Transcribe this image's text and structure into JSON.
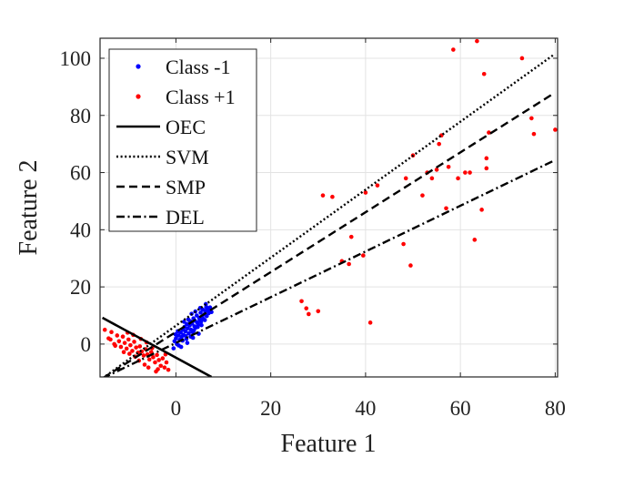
{
  "chart_data": {
    "type": "scatter",
    "xlabel": "Feature 1",
    "ylabel": "Feature 2",
    "xlim": [
      -16,
      80.5
    ],
    "ylim": [
      -11.5,
      107
    ],
    "xticks": [
      0,
      20,
      40,
      60,
      80
    ],
    "yticks": [
      0,
      20,
      40,
      60,
      80,
      100
    ],
    "xtick_labels": [
      "0",
      "20",
      "40",
      "60",
      "80"
    ],
    "ytick_labels": [
      "0",
      "20",
      "40",
      "60",
      "80",
      "100"
    ],
    "grid": true,
    "legend_position": "top-left",
    "series": [
      {
        "name": "Class -1",
        "kind": "points",
        "color": "#0000ff",
        "points": [
          [
            -0.5,
            -1.5
          ],
          [
            -0.3,
            1.0
          ],
          [
            0.0,
            2.0
          ],
          [
            0.2,
            0.0
          ],
          [
            0.5,
            3.0
          ],
          [
            0.8,
            1.5
          ],
          [
            1.0,
            4.0
          ],
          [
            1.2,
            2.5
          ],
          [
            1.5,
            5.0
          ],
          [
            1.6,
            3.2
          ],
          [
            1.8,
            6.0
          ],
          [
            2.0,
            4.5
          ],
          [
            2.1,
            2.8
          ],
          [
            2.3,
            7.0
          ],
          [
            2.5,
            5.5
          ],
          [
            2.7,
            3.8
          ],
          [
            2.9,
            6.5
          ],
          [
            3.0,
            8.0
          ],
          [
            3.2,
            5.0
          ],
          [
            3.4,
            7.2
          ],
          [
            3.5,
            4.2
          ],
          [
            3.7,
            9.0
          ],
          [
            3.9,
            6.2
          ],
          [
            4.0,
            8.2
          ],
          [
            4.2,
            5.8
          ],
          [
            4.4,
            10.0
          ],
          [
            4.5,
            7.5
          ],
          [
            4.7,
            6.8
          ],
          [
            4.9,
            9.2
          ],
          [
            5.0,
            8.6
          ],
          [
            5.2,
            11.0
          ],
          [
            5.3,
            7.8
          ],
          [
            5.5,
            9.6
          ],
          [
            5.7,
            12.0
          ],
          [
            5.8,
            8.8
          ],
          [
            6.0,
            10.4
          ],
          [
            6.2,
            11.6
          ],
          [
            6.4,
            13.0
          ],
          [
            6.5,
            9.8
          ],
          [
            6.7,
            12.4
          ],
          [
            6.9,
            10.8
          ],
          [
            7.0,
            11.5
          ],
          [
            7.2,
            12.8
          ],
          [
            7.5,
            11.2
          ],
          [
            0.6,
            -0.5
          ],
          [
            1.4,
            1.2
          ],
          [
            2.2,
            1.8
          ],
          [
            3.1,
            2.6
          ],
          [
            3.8,
            4.8
          ],
          [
            4.6,
            6.0
          ],
          [
            5.4,
            6.6
          ],
          [
            6.1,
            8.4
          ],
          [
            0.4,
            4.5
          ],
          [
            1.7,
            7.8
          ],
          [
            2.6,
            8.6
          ],
          [
            3.3,
            10.6
          ],
          [
            4.1,
            11.4
          ],
          [
            5.1,
            12.6
          ],
          [
            6.3,
            14.0
          ],
          [
            1.1,
            -1.0
          ],
          [
            2.4,
            0.4
          ],
          [
            3.6,
            2.2
          ],
          [
            4.8,
            3.6
          ],
          [
            -0.1,
            3.4
          ]
        ]
      },
      {
        "name": "Class +1",
        "kind": "points",
        "color": "#ff0000",
        "points": [
          [
            -15.0,
            5.0
          ],
          [
            -14.2,
            2.0
          ],
          [
            -13.6,
            4.2
          ],
          [
            -13.0,
            0.0
          ],
          [
            -12.4,
            3.0
          ],
          [
            -12.0,
            1.0
          ],
          [
            -11.6,
            -1.0
          ],
          [
            -11.2,
            2.6
          ],
          [
            -10.8,
            0.4
          ],
          [
            -10.4,
            -1.6
          ],
          [
            -10.0,
            1.6
          ],
          [
            -9.6,
            -0.4
          ],
          [
            -9.2,
            -2.4
          ],
          [
            -8.8,
            0.8
          ],
          [
            -8.4,
            -1.2
          ],
          [
            -8.0,
            -3.0
          ],
          [
            -7.6,
            -0.8
          ],
          [
            -7.2,
            -2.6
          ],
          [
            -6.8,
            -4.0
          ],
          [
            -6.4,
            -1.8
          ],
          [
            -6.0,
            -3.6
          ],
          [
            -5.6,
            -5.4
          ],
          [
            -5.2,
            -2.8
          ],
          [
            -4.8,
            -4.6
          ],
          [
            -4.4,
            -6.4
          ],
          [
            -4.0,
            -3.8
          ],
          [
            -3.6,
            -5.6
          ],
          [
            -3.2,
            -7.6
          ],
          [
            -2.8,
            -5.0
          ],
          [
            -2.4,
            -8.2
          ],
          [
            -2.0,
            -6.4
          ],
          [
            -1.6,
            -9.0
          ],
          [
            -9.0,
            3.2
          ],
          [
            -7.4,
            1.8
          ],
          [
            -6.2,
            0.6
          ],
          [
            -5.0,
            -1.4
          ],
          [
            -3.8,
            -8.8
          ],
          [
            -8.6,
            -4.4
          ],
          [
            -11.0,
            -2.8
          ],
          [
            -12.8,
            -0.6
          ],
          [
            -4.2,
            -9.6
          ],
          [
            -6.6,
            -7.2
          ],
          [
            -10.2,
            4.0
          ],
          [
            -13.8,
            1.6
          ],
          [
            -2.2,
            -3.6
          ],
          [
            -5.8,
            -8.2
          ],
          [
            -7.8,
            -5.8
          ],
          [
            -9.8,
            -3.4
          ],
          [
            26.5,
            15.0
          ],
          [
            27.5,
            12.5
          ],
          [
            28.0,
            10.5
          ],
          [
            30.0,
            11.5
          ],
          [
            31.0,
            52.0
          ],
          [
            33.0,
            51.5
          ],
          [
            35.0,
            29.0
          ],
          [
            37.0,
            37.5
          ],
          [
            36.5,
            28.0
          ],
          [
            40.0,
            53.0
          ],
          [
            41.0,
            7.5
          ],
          [
            42.5,
            55.5
          ],
          [
            39.5,
            31.0
          ],
          [
            48.0,
            35.0
          ],
          [
            49.5,
            27.5
          ],
          [
            48.5,
            58.0
          ],
          [
            50.0,
            66.0
          ],
          [
            52.0,
            52.0
          ],
          [
            53.0,
            60.0
          ],
          [
            54.0,
            58.0
          ],
          [
            55.0,
            61.0
          ],
          [
            55.5,
            70.0
          ],
          [
            56.0,
            73.0
          ],
          [
            57.0,
            47.5
          ],
          [
            57.5,
            62.0
          ],
          [
            58.5,
            103.0
          ],
          [
            59.5,
            58.0
          ],
          [
            61.0,
            60.0
          ],
          [
            62.0,
            60.0
          ],
          [
            63.0,
            36.5
          ],
          [
            63.5,
            106.0
          ],
          [
            64.5,
            47.0
          ],
          [
            65.0,
            94.5
          ],
          [
            65.5,
            65.0
          ],
          [
            65.5,
            61.5
          ],
          [
            66.0,
            74.0
          ],
          [
            73.0,
            100.0
          ],
          [
            75.0,
            79.0
          ],
          [
            75.5,
            73.5
          ],
          [
            80.0,
            75.0
          ]
        ]
      },
      {
        "name": "OEC",
        "kind": "line",
        "style": "solid",
        "color": "#000000",
        "x": [
          -15.5,
          7.5
        ],
        "y": [
          9.2,
          -11.5
        ]
      },
      {
        "name": "SVM",
        "kind": "line",
        "style": "dotted",
        "color": "#000000",
        "x": [
          -15.5,
          79.5
        ],
        "y": [
          -12.0,
          101.0
        ]
      },
      {
        "name": "SMP",
        "kind": "line",
        "style": "dashed",
        "color": "#000000",
        "x": [
          -15.5,
          79.5
        ],
        "y": [
          -12.0,
          87.5
        ]
      },
      {
        "name": "DEL",
        "kind": "line",
        "style": "dashdot",
        "color": "#000000",
        "x": [
          -15.5,
          79.5
        ],
        "y": [
          -12.0,
          64.0
        ]
      }
    ]
  }
}
